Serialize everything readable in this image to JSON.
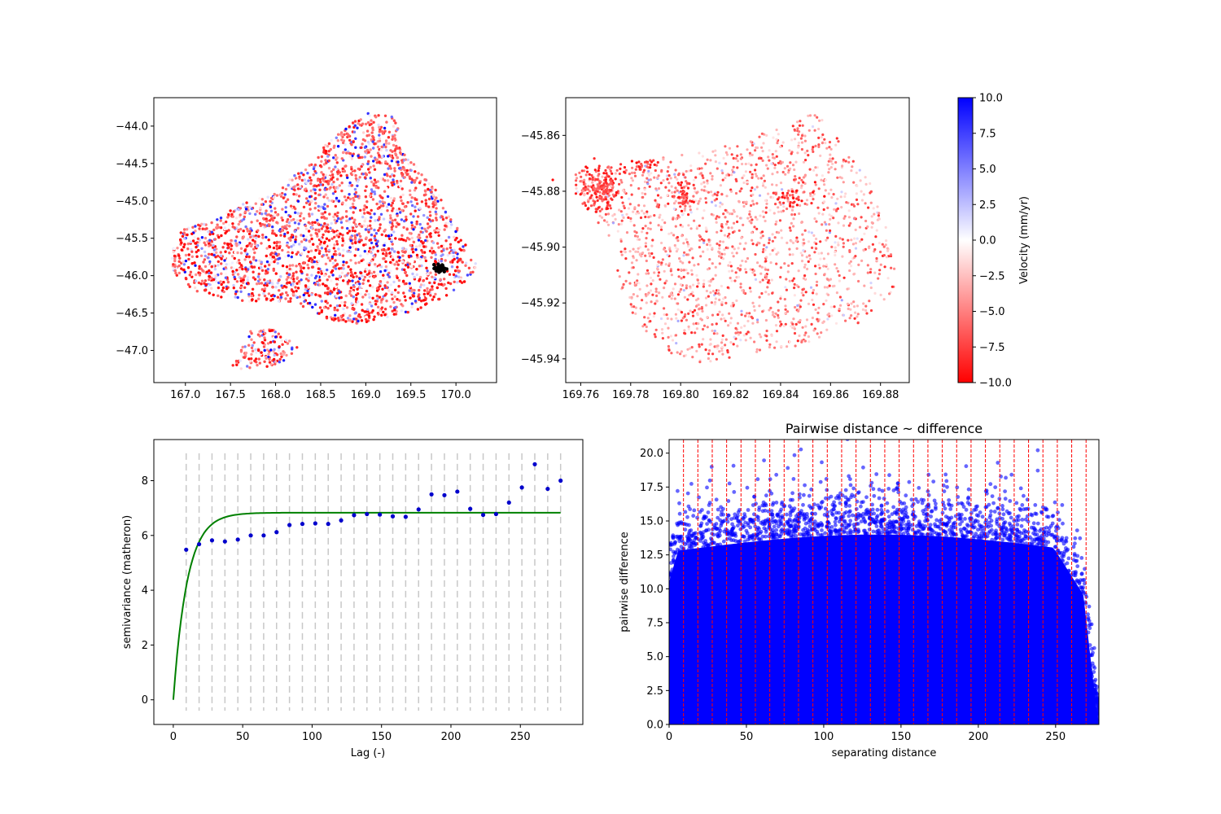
{
  "chart_data": [
    {
      "type": "scatter",
      "panel": "velocity-map-full",
      "title": "",
      "xlabel": "",
      "ylabel": "",
      "xlim": [
        166.65,
        170.45
      ],
      "ylim": [
        -47.43,
        -43.62
      ],
      "xticks": [
        "167.0",
        "167.5",
        "168.0",
        "168.5",
        "169.0",
        "169.5",
        "170.0"
      ],
      "yticks": [
        "-44.0",
        "-44.5",
        "-45.0",
        "-45.5",
        "-46.0",
        "-46.5",
        "-47.0"
      ],
      "color_variable": "velocity (mm/yr)",
      "highlight": {
        "color": "#000000",
        "x": 169.83,
        "y": -45.9
      }
    },
    {
      "type": "scatter",
      "panel": "velocity-map-zoom",
      "title": "",
      "xlabel": "",
      "ylabel": "",
      "xlim": [
        169.754,
        169.8915
      ],
      "ylim": [
        -45.9485,
        -45.8465
      ],
      "xticks": [
        "169.76",
        "169.78",
        "169.80",
        "169.82",
        "169.84",
        "169.86",
        "169.88"
      ],
      "yticks": [
        "-45.86",
        "-45.88",
        "-45.90",
        "-45.92",
        "-45.94"
      ]
    },
    {
      "type": "colorbar",
      "label": "Velocity (mm/yr)",
      "range": [
        -10.0,
        10.0
      ],
      "ticks": [
        "10.0",
        "7.5",
        "5.0",
        "2.5",
        "0.0",
        "-2.5",
        "-5.0",
        "-7.5",
        "-10.0"
      ],
      "colormap": {
        "low": "#ff0000",
        "mid": "#ffffff",
        "high": "#0000ff"
      }
    },
    {
      "type": "scatter",
      "panel": "variogram",
      "title": "",
      "xlabel": "Lag (-)",
      "ylabel": "semivariance (matheron)",
      "xlim": [
        -14,
        295
      ],
      "ylim": [
        -0.9,
        9.5
      ],
      "xticks": [
        "0",
        "50",
        "100",
        "150",
        "200",
        "250"
      ],
      "yticks": [
        "0",
        "2",
        "4",
        "6",
        "8"
      ],
      "bins_x": [
        9.3,
        18.6,
        27.9,
        37.2,
        46.5,
        55.8,
        65.1,
        74.4,
        83.7,
        93.0,
        102.3,
        111.6,
        120.9,
        130.2,
        139.5,
        148.8,
        158.1,
        167.4,
        176.7,
        186.0,
        195.3,
        204.6,
        213.9,
        223.2,
        232.5,
        241.8,
        251.1,
        260.4,
        269.7,
        279.0
      ],
      "semivariance": [
        5.48,
        5.68,
        5.82,
        5.78,
        5.85,
        6.0,
        6.0,
        6.12,
        6.38,
        6.42,
        6.44,
        6.42,
        6.55,
        6.74,
        6.78,
        6.76,
        6.7,
        6.68,
        6.95,
        7.5,
        7.47,
        7.6,
        6.97,
        6.75,
        6.78,
        7.2,
        7.75,
        8.6,
        7.7,
        8.0
      ],
      "model": {
        "type": "exponential",
        "sill": 6.83,
        "range": 30,
        "nugget": 0,
        "color": "#008000"
      },
      "points_color": "#0000cc"
    },
    {
      "type": "scatter",
      "panel": "pairwise",
      "title": "Pairwise distance ~ difference",
      "xlabel": "separating distance",
      "ylabel": "pairwise difference",
      "xlim": [
        0,
        278
      ],
      "ylim": [
        0,
        21
      ],
      "xticks": [
        "0",
        "50",
        "100",
        "150",
        "200",
        "250"
      ],
      "yticks": [
        "0.0",
        "2.5",
        "5.0",
        "7.5",
        "10.0",
        "12.5",
        "15.0",
        "17.5",
        "20.0"
      ],
      "bin_edges": [
        9.3,
        18.6,
        27.9,
        37.2,
        46.5,
        55.8,
        65.1,
        74.4,
        83.7,
        93.0,
        102.3,
        111.6,
        120.9,
        130.2,
        139.5,
        148.8,
        158.1,
        167.4,
        176.7,
        186.0,
        195.3,
        204.6,
        213.9,
        223.2,
        232.5,
        241.8,
        251.1,
        260.4,
        269.7
      ],
      "points_color": "#0000ff",
      "bin_line_color": "#ff0000"
    }
  ]
}
